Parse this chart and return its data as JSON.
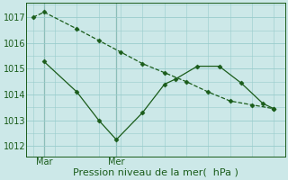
{
  "line1_x": [
    0,
    0.5,
    2,
    3,
    4,
    5,
    6,
    7,
    8,
    9,
    10,
    11
  ],
  "line1_y": [
    1017.0,
    1017.2,
    1016.55,
    1016.1,
    1015.65,
    1015.2,
    1014.85,
    1014.5,
    1014.1,
    1013.75,
    1013.6,
    1013.45
  ],
  "line2_x": [
    0.5,
    2,
    3,
    3.8,
    5,
    6,
    6.5,
    7.5,
    8.5,
    9.5,
    10.5,
    11
  ],
  "line2_y": [
    1015.28,
    1014.1,
    1013.0,
    1012.25,
    1013.3,
    1014.4,
    1014.6,
    1015.1,
    1015.1,
    1014.45,
    1013.65,
    1013.45
  ],
  "line_color": "#1a5c1a",
  "bg_color": "#cce8e8",
  "grid_color": "#99cccc",
  "ylabel_ticks": [
    1012,
    1013,
    1014,
    1015,
    1016,
    1017
  ],
  "ylim": [
    1011.6,
    1017.55
  ],
  "xlabel": "Pression niveau de la mer(  hPa )",
  "vline1_x": 0.5,
  "vline2_x": 3.8,
  "xtick_labels": [
    "Mar",
    "Mer"
  ],
  "xtick_positions": [
    0.5,
    3.8
  ],
  "label_fontsize": 8,
  "tick_fontsize": 7
}
